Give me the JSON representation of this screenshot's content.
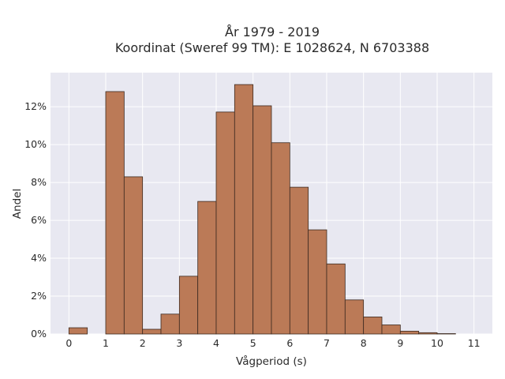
{
  "chart_data": {
    "type": "bar",
    "title_line1": "År 1979 - 2019",
    "title_line2": "Koordinat (Sweref 99 TM): E 1028624, N 6703388",
    "xlabel": "Vågperiod (s)",
    "ylabel": "Andel",
    "xlim": [
      -0.5,
      11.5
    ],
    "ylim": [
      0,
      0.138
    ],
    "x_ticks": [
      0,
      1,
      2,
      3,
      4,
      5,
      6,
      7,
      8,
      9,
      10,
      11
    ],
    "y_ticks": [
      0,
      0.02,
      0.04,
      0.06,
      0.08,
      0.1,
      0.12
    ],
    "y_tick_labels": [
      "0%",
      "2%",
      "4%",
      "6%",
      "8%",
      "10%",
      "12%"
    ],
    "bin_width": 0.5,
    "bins": [
      {
        "start": 0.0,
        "value": 0.0033
      },
      {
        "start": 0.5,
        "value": 0.0
      },
      {
        "start": 1.0,
        "value": 0.128
      },
      {
        "start": 1.5,
        "value": 0.083
      },
      {
        "start": 2.0,
        "value": 0.0025
      },
      {
        "start": 2.5,
        "value": 0.0105
      },
      {
        "start": 3.0,
        "value": 0.0305
      },
      {
        "start": 3.5,
        "value": 0.07
      },
      {
        "start": 4.0,
        "value": 0.1172
      },
      {
        "start": 4.5,
        "value": 0.1317
      },
      {
        "start": 5.0,
        "value": 0.1205
      },
      {
        "start": 5.5,
        "value": 0.101
      },
      {
        "start": 6.0,
        "value": 0.0775
      },
      {
        "start": 6.5,
        "value": 0.055
      },
      {
        "start": 7.0,
        "value": 0.037
      },
      {
        "start": 7.5,
        "value": 0.018
      },
      {
        "start": 8.0,
        "value": 0.009
      },
      {
        "start": 8.5,
        "value": 0.0048
      },
      {
        "start": 9.0,
        "value": 0.0015
      },
      {
        "start": 9.5,
        "value": 0.0007
      },
      {
        "start": 10.0,
        "value": 0.0002
      }
    ],
    "grid": true,
    "colors": {
      "bar_fill": "#bb7a57",
      "bar_stroke": "#3c2a20",
      "plot_bg": "#e8e8f1",
      "grid": "#ffffff"
    }
  }
}
